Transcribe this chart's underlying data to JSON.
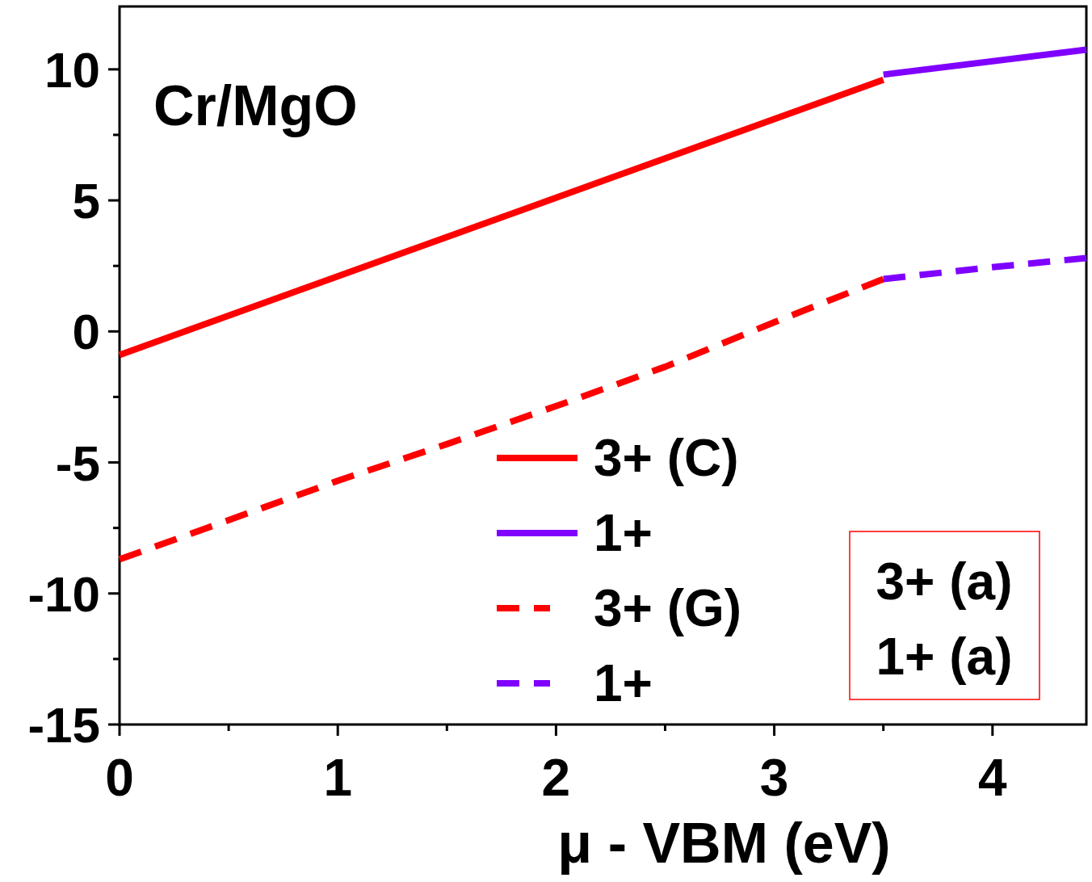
{
  "chart_data": {
    "type": "line",
    "xlabel": "μ - VBM (eV)",
    "annotations": [
      "Cr/MgO",
      "3+ (a)",
      "1+ (a)"
    ],
    "xlim": [
      0,
      4.43
    ],
    "ylim": [
      -15,
      12.4
    ],
    "xticks": [
      0,
      {
        "value": 0.5,
        "label": null
      },
      1,
      {
        "value": 1.5,
        "label": null
      },
      2,
      {
        "value": 2.5,
        "label": null
      },
      3,
      {
        "value": 3.5,
        "label": null
      },
      4
    ],
    "yticks": [
      -15,
      {
        "value": -12.5,
        "label": null
      },
      -10,
      {
        "value": -7.5,
        "label": null
      },
      -5,
      {
        "value": -2.5,
        "label": null
      },
      0,
      {
        "value": 2.5,
        "label": null
      },
      5,
      {
        "value": 7.5,
        "label": null
      },
      10
    ],
    "legend": "bottom",
    "grid": false,
    "series": [
      {
        "name": "3+ (C)",
        "color": "#ff0000",
        "line_style": "solid",
        "x": [
          0,
          3.5
        ],
        "values": [
          -0.9,
          9.6
        ]
      },
      {
        "name": "1+",
        "color": "#7f00ff",
        "line_style": "solid",
        "x": [
          3.5,
          4.43
        ],
        "values": [
          9.8,
          10.75
        ]
      },
      {
        "name": "3+ (G)",
        "color": "#ff0000",
        "line_style": "dashed",
        "x": [
          0,
          0.5,
          1,
          1.5,
          2,
          2.5,
          3,
          3.5
        ],
        "values": [
          -8.7,
          -7.2,
          -5.7,
          -4.3,
          -2.85,
          -1.35,
          0.35,
          2.0
        ]
      },
      {
        "name": "1+",
        "color": "#7f00ff",
        "line_style": "dashed",
        "x": [
          3.5,
          4,
          4.43
        ],
        "values": [
          2.0,
          2.45,
          2.8
        ]
      }
    ]
  }
}
